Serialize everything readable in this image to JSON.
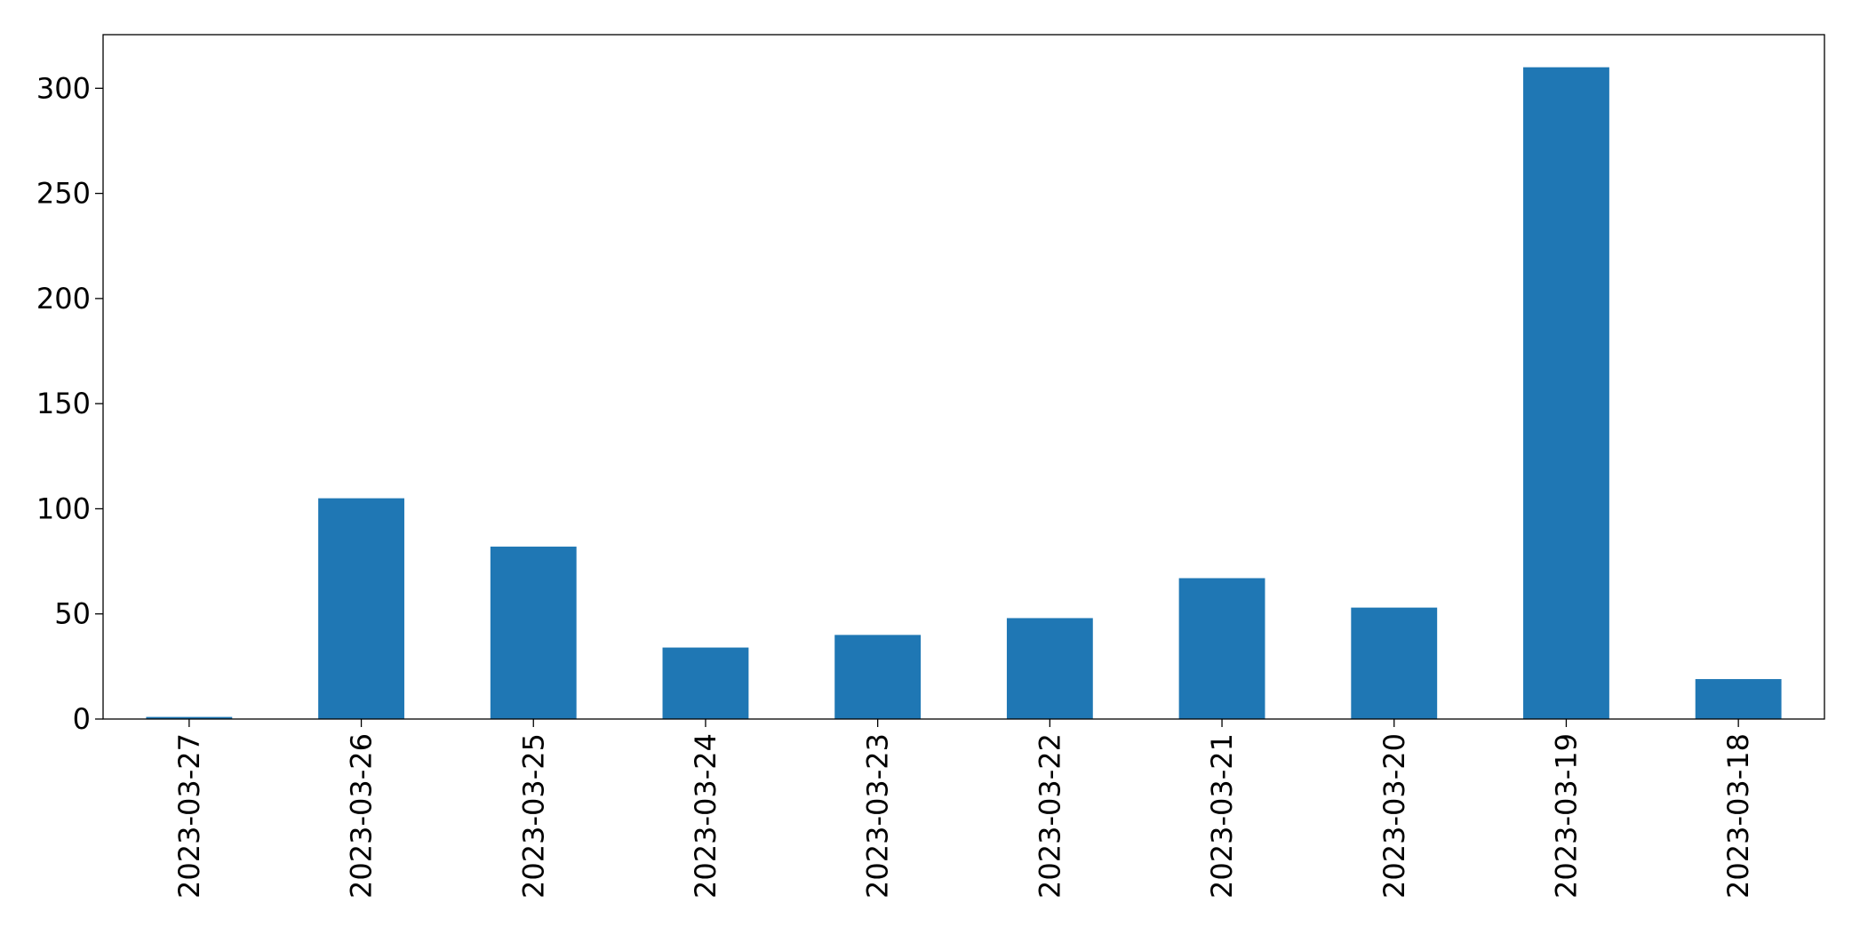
{
  "chart_data": {
    "type": "bar",
    "categories": [
      "2023-03-27",
      "2023-03-26",
      "2023-03-25",
      "2023-03-24",
      "2023-03-23",
      "2023-03-22",
      "2023-03-21",
      "2023-03-20",
      "2023-03-19",
      "2023-03-18"
    ],
    "values": [
      1,
      105,
      82,
      34,
      40,
      48,
      67,
      53,
      310,
      19
    ],
    "color": "#1f77b4",
    "ylim": [
      0,
      325.5
    ],
    "yticks": [
      0,
      50,
      100,
      150,
      200,
      250,
      300
    ],
    "grid": false
  }
}
